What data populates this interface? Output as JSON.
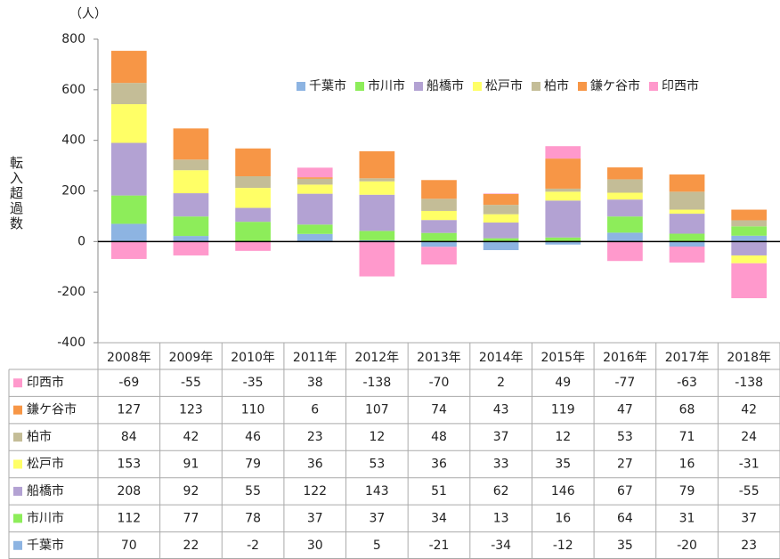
{
  "chart_data": {
    "type": "stacked_bar",
    "unit_label": "（人）",
    "y_label": "転入超過数",
    "categories": [
      "2008年",
      "2009年",
      "2010年",
      "2011年",
      "2012年",
      "2013年",
      "2014年",
      "2015年",
      "2016年",
      "2017年",
      "2018年"
    ],
    "series": [
      {
        "name": "千葉市",
        "color": "#8db4e2",
        "values": [
          70,
          22,
          -2,
          30,
          5,
          -21,
          -34,
          -12,
          35,
          -20,
          23
        ]
      },
      {
        "name": "市川市",
        "color": "#8ded5a",
        "values": [
          112,
          77,
          78,
          37,
          37,
          34,
          13,
          16,
          64,
          31,
          37
        ]
      },
      {
        "name": "船橋市",
        "color": "#b3a2d3",
        "values": [
          208,
          92,
          55,
          122,
          143,
          51,
          62,
          146,
          67,
          79,
          -55
        ]
      },
      {
        "name": "松戸市",
        "color": "#ffff66",
        "values": [
          153,
          91,
          79,
          36,
          53,
          36,
          33,
          35,
          27,
          16,
          -31
        ]
      },
      {
        "name": "柏市",
        "color": "#c4bd97",
        "values": [
          84,
          42,
          46,
          23,
          12,
          48,
          37,
          12,
          53,
          71,
          24
        ]
      },
      {
        "name": "鎌ケ谷市",
        "color": "#f79646",
        "values": [
          127,
          123,
          110,
          6,
          107,
          74,
          43,
          119,
          47,
          68,
          42
        ]
      },
      {
        "name": "印西市",
        "color": "#ff99cc",
        "values": [
          -69,
          -55,
          -35,
          38,
          -138,
          -70,
          2,
          49,
          -77,
          -63,
          -138
        ]
      }
    ],
    "ylim": [
      -400,
      800
    ],
    "yticks": [
      -400,
      -200,
      0,
      200,
      400,
      600,
      800
    ],
    "legend": "top-right",
    "data_table": true
  }
}
